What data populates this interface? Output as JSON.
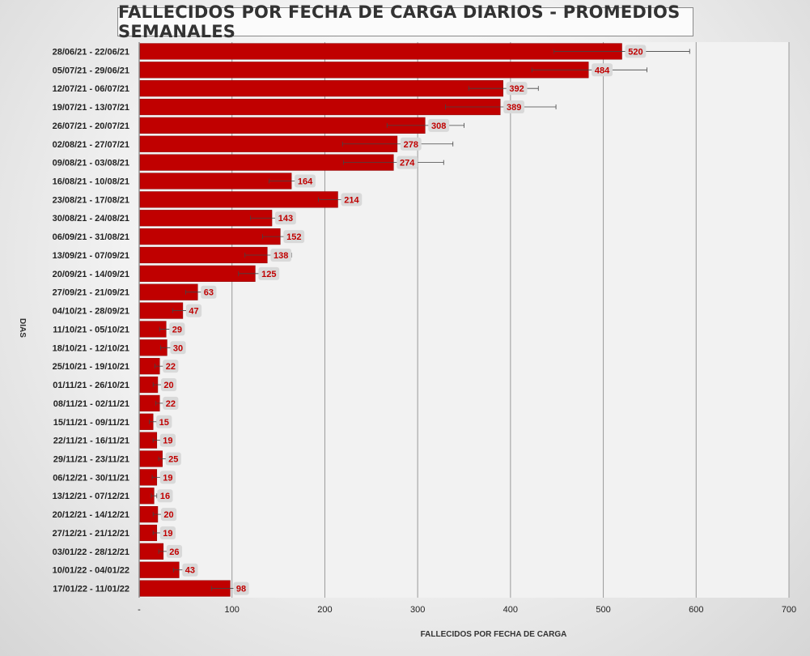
{
  "chart_data": {
    "type": "bar",
    "orientation": "horizontal",
    "title": "FALLECIDOS POR FECHA DE CARGA DIARIOS - PROMEDIOS SEMANALES",
    "xlabel": "FALLECIDOS POR FECHA DE CARGA",
    "ylabel": "DIAS",
    "xlim": [
      0,
      700
    ],
    "xticks": [
      "-",
      "100",
      "200",
      "300",
      "400",
      "500",
      "600",
      "700"
    ],
    "grid": true,
    "legend": "none",
    "bar_color": "#c00000",
    "categories": [
      "28/06/21 - 22/06/21",
      "05/07/21 - 29/06/21",
      "12/07/21 - 06/07/21",
      "19/07/21 - 13/07/21",
      "26/07/21 - 20/07/21",
      "02/08/21 - 27/07/21",
      "09/08/21 - 03/08/21",
      "16/08/21 - 10/08/21",
      "23/08/21 - 17/08/21",
      "30/08/21 - 24/08/21",
      "06/09/21 - 31/08/21",
      "13/09/21 - 07/09/21",
      "20/09/21 - 14/09/21",
      "27/09/21 - 21/09/21",
      "04/10/21 - 28/09/21",
      "11/10/21 - 05/10/21",
      "18/10/21 - 12/10/21",
      "25/10/21 - 19/10/21",
      "01/11/21 - 26/10/21",
      "08/11/21 - 02/11/21",
      "15/11/21 - 09/11/21",
      "22/11/21 - 16/11/21",
      "29/11/21 - 23/11/21",
      "06/12/21 - 30/11/21",
      "13/12/21 - 07/12/21",
      "20/12/21 - 14/12/21",
      "27/12/21 - 21/12/21",
      "03/01/22 - 28/12/21",
      "10/01/22 - 04/01/22",
      "17/01/22 - 11/01/22"
    ],
    "values": [
      520,
      484,
      392,
      389,
      308,
      278,
      274,
      164,
      214,
      143,
      152,
      138,
      125,
      63,
      47,
      29,
      30,
      22,
      20,
      22,
      15,
      19,
      25,
      19,
      16,
      20,
      19,
      26,
      43,
      98
    ],
    "error_low": [
      447,
      423,
      355,
      330,
      267,
      219,
      220,
      140,
      193,
      120,
      133,
      114,
      107,
      50,
      36,
      22,
      23,
      17,
      15,
      18,
      11,
      15,
      21,
      14,
      13,
      15,
      15,
      21,
      37,
      78
    ],
    "error_high": [
      593,
      547,
      430,
      449,
      350,
      338,
      328,
      189,
      235,
      167,
      172,
      164,
      143,
      76,
      58,
      36,
      37,
      27,
      25,
      26,
      19,
      23,
      29,
      24,
      19,
      25,
      23,
      31,
      49,
      117
    ]
  }
}
